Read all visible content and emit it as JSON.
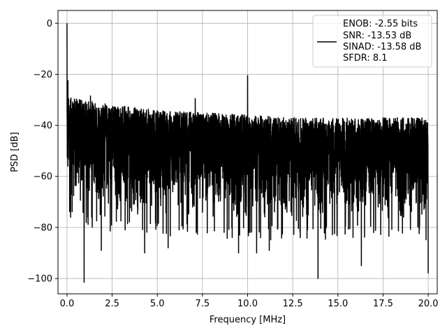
{
  "chart_data": {
    "type": "line",
    "xlabel": "Frequency [MHz]",
    "ylabel": "PSD [dB]",
    "xlim": [
      -0.5,
      20.5
    ],
    "ylim": [
      -106,
      5
    ],
    "x_ticks": [
      0.0,
      2.5,
      5.0,
      7.5,
      10.0,
      12.5,
      15.0,
      17.5,
      20.0
    ],
    "x_tick_labels": [
      "0.0",
      "2.5",
      "5.0",
      "7.5",
      "10.0",
      "12.5",
      "15.0",
      "17.5",
      "20.0"
    ],
    "y_ticks": [
      0,
      -20,
      -40,
      -60,
      -80,
      -100
    ],
    "y_tick_labels": [
      "0",
      "−20",
      "−40",
      "−60",
      "−80",
      "−100"
    ],
    "grid": true,
    "legend_position": "top-right",
    "legend_lines": [
      "ENOB: -2.55 bits",
      "SNR: -13.53 dB",
      "SINAD: -13.58 dB",
      "SFDR: 8.1"
    ],
    "series": [
      {
        "color": "#000000",
        "x_range": [
          0,
          20
        ],
        "noise_floor_upper_db": [
          [
            0.1,
            -29
          ],
          [
            2.5,
            -32
          ],
          [
            5,
            -34
          ],
          [
            7.5,
            -35
          ],
          [
            10,
            -36
          ],
          [
            12.5,
            -37
          ],
          [
            15,
            -37
          ],
          [
            17.5,
            -37
          ],
          [
            20,
            -37
          ]
        ],
        "noise_floor_lower_db": [
          [
            0.1,
            -72
          ],
          [
            2.5,
            -76
          ],
          [
            5,
            -78
          ],
          [
            7.5,
            -78
          ],
          [
            10,
            -79
          ],
          [
            12.5,
            -79
          ],
          [
            15,
            -79
          ],
          [
            17.5,
            -79
          ],
          [
            20,
            -79
          ]
        ],
        "peaks": [
          {
            "x": 0.0,
            "y": 0.0
          },
          {
            "x": 0.05,
            "y": -22.5
          },
          {
            "x": 1.3,
            "y": -28.5
          },
          {
            "x": 7.1,
            "y": -29.5
          },
          {
            "x": 10.0,
            "y": -20.5
          },
          {
            "x": 20.0,
            "y": -34.5
          }
        ],
        "dips": [
          {
            "x": 0.95,
            "y": -101.5
          },
          {
            "x": 1.9,
            "y": -89
          },
          {
            "x": 4.3,
            "y": -90
          },
          {
            "x": 5.6,
            "y": -88
          },
          {
            "x": 9.5,
            "y": -90
          },
          {
            "x": 10.5,
            "y": -90
          },
          {
            "x": 11.2,
            "y": -89
          },
          {
            "x": 13.9,
            "y": -100
          },
          {
            "x": 16.3,
            "y": -95
          },
          {
            "x": 20.0,
            "y": -98
          }
        ]
      }
    ]
  }
}
